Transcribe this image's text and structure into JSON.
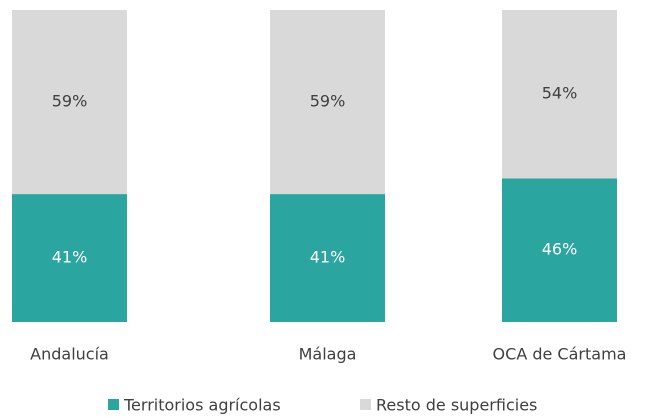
{
  "chart_data": {
    "type": "stacked_bar",
    "categories": [
      "Andalucía",
      "Málaga",
      "OCA de Cártama"
    ],
    "series": [
      {
        "name": "Territorios agrícolas",
        "color": "#2aa59f",
        "values": [
          41,
          41,
          46
        ],
        "value_labels": [
          "41%",
          "41%",
          "46%"
        ]
      },
      {
        "name": "Resto de superficies",
        "color": "#d9d9d9",
        "values": [
          59,
          59,
          54
        ],
        "value_labels": [
          "59%",
          "59%",
          "54%"
        ]
      }
    ],
    "ylim": [
      0,
      100
    ]
  }
}
